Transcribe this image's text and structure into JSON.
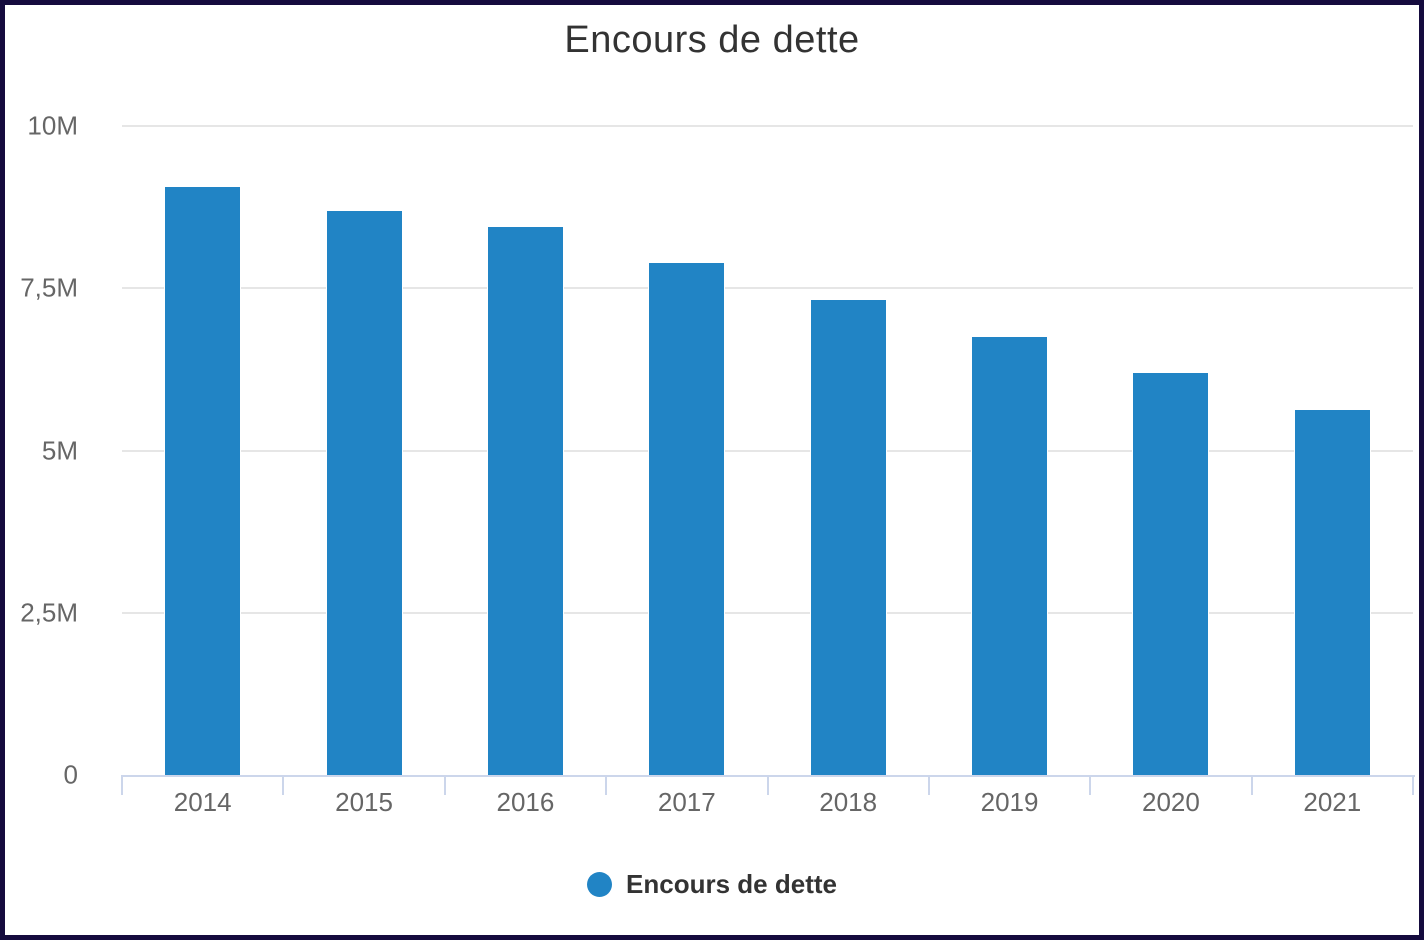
{
  "chart_data": {
    "type": "bar",
    "title": "Encours de dette",
    "categories": [
      "2014",
      "2015",
      "2016",
      "2017",
      "2018",
      "2019",
      "2020",
      "2021"
    ],
    "series": [
      {
        "name": "Encours de dette",
        "color": "#2184c5",
        "values": [
          9080000,
          8710000,
          8460000,
          7910000,
          7340000,
          6760000,
          6210000,
          5640000
        ]
      }
    ],
    "xlabel": "",
    "ylabel": "",
    "ylim": [
      0,
      10000000
    ],
    "yticks": [
      {
        "value": 0,
        "label": "0"
      },
      {
        "value": 2500000,
        "label": "2,5M"
      },
      {
        "value": 5000000,
        "label": "5M"
      },
      {
        "value": 7500000,
        "label": "7,5M"
      },
      {
        "value": 10000000,
        "label": "10M"
      }
    ],
    "grid": true,
    "legend_position": "bottom"
  },
  "colors": {
    "bar": "#2184c5",
    "border": "#150b3e",
    "gridline": "#e6e6e6",
    "axis_line": "#ccd6eb",
    "title_text": "#333333",
    "axis_label_text": "#666666",
    "legend_text": "#333333",
    "background": "#ffffff"
  }
}
